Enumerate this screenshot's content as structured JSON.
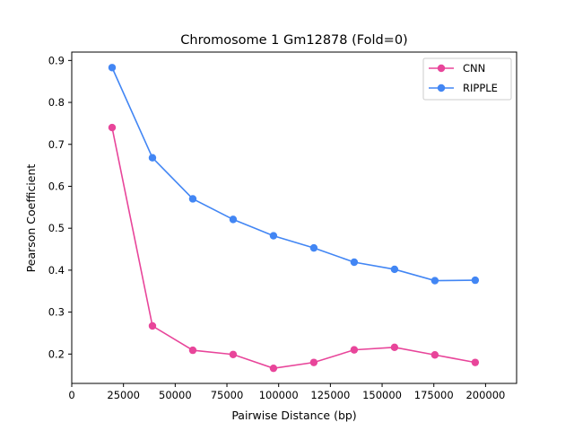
{
  "chart_data": {
    "type": "line",
    "title": "Chromosome 1 Gm12878 (Fold=0)",
    "xlabel": "Pairwise Distance (bp)",
    "ylabel": "Pearson Coefficient",
    "xlim": [
      0,
      215000
    ],
    "ylim": [
      0.13,
      0.92
    ],
    "xticks": [
      0,
      25000,
      50000,
      75000,
      100000,
      125000,
      150000,
      175000,
      200000
    ],
    "xtick_labels": [
      "0",
      "25000",
      "50000",
      "75000",
      "100000",
      "125000",
      "150000",
      "175000",
      "200000"
    ],
    "yticks": [
      0.2,
      0.3,
      0.4,
      0.5,
      0.6,
      0.7,
      0.8,
      0.9
    ],
    "ytick_labels": [
      "0.2",
      "0.3",
      "0.4",
      "0.5",
      "0.6",
      "0.7",
      "0.8",
      "0.9"
    ],
    "grid": false,
    "legend_position": "top-right",
    "x": [
      19500,
      39000,
      58500,
      78000,
      97500,
      117000,
      136500,
      156000,
      175500,
      195000
    ],
    "series": [
      {
        "name": "CNN",
        "color": "#e8459a",
        "values": [
          0.74,
          0.267,
          0.209,
          0.199,
          0.166,
          0.18,
          0.21,
          0.216,
          0.198,
          0.18
        ]
      },
      {
        "name": "RIPPLE",
        "color": "#4286f4",
        "values": [
          0.883,
          0.668,
          0.57,
          0.521,
          0.482,
          0.453,
          0.419,
          0.402,
          0.375,
          0.376
        ]
      }
    ]
  }
}
